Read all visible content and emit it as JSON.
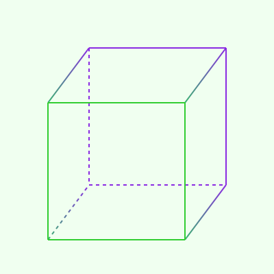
{
  "diagram": {
    "type": "cube-wireframe",
    "colors": {
      "background": "#f0fff0",
      "front_face": "#32cd32",
      "back_face": "#8a2be2",
      "connector_gradient_start": "#3cb371",
      "connector_gradient_end": "#8a2be2"
    },
    "edges": [
      {
        "name": "front-top-edge",
        "face": "front",
        "style": "solid"
      },
      {
        "name": "front-right-edge",
        "face": "front",
        "style": "solid"
      },
      {
        "name": "front-bottom-edge",
        "face": "front",
        "style": "solid"
      },
      {
        "name": "front-left-edge",
        "face": "front",
        "style": "solid"
      },
      {
        "name": "back-top-edge",
        "face": "back",
        "style": "solid"
      },
      {
        "name": "back-right-edge",
        "face": "back",
        "style": "solid"
      },
      {
        "name": "back-bottom-edge",
        "face": "back",
        "style": "dashed"
      },
      {
        "name": "back-left-edge",
        "face": "back",
        "style": "dashed"
      },
      {
        "name": "top-left-connector",
        "face": "connector",
        "style": "solid"
      },
      {
        "name": "top-right-connector",
        "face": "connector",
        "style": "solid"
      },
      {
        "name": "bottom-right-connector",
        "face": "connector",
        "style": "solid"
      },
      {
        "name": "bottom-left-connector",
        "face": "connector",
        "style": "dashed"
      }
    ]
  }
}
